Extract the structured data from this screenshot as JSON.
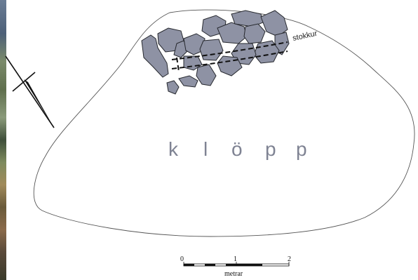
{
  "labels": {
    "area_word_letters": [
      "k",
      "l",
      "ö",
      "p",
      "p"
    ],
    "beam_label": "stokkur"
  },
  "scale_bar": {
    "ticks": [
      "0",
      "1",
      "2"
    ],
    "unit": "metrar"
  },
  "colors": {
    "stone_fill": "#8e92a4",
    "stone_stroke": "#26282e",
    "lettering": "#7f8393"
  }
}
